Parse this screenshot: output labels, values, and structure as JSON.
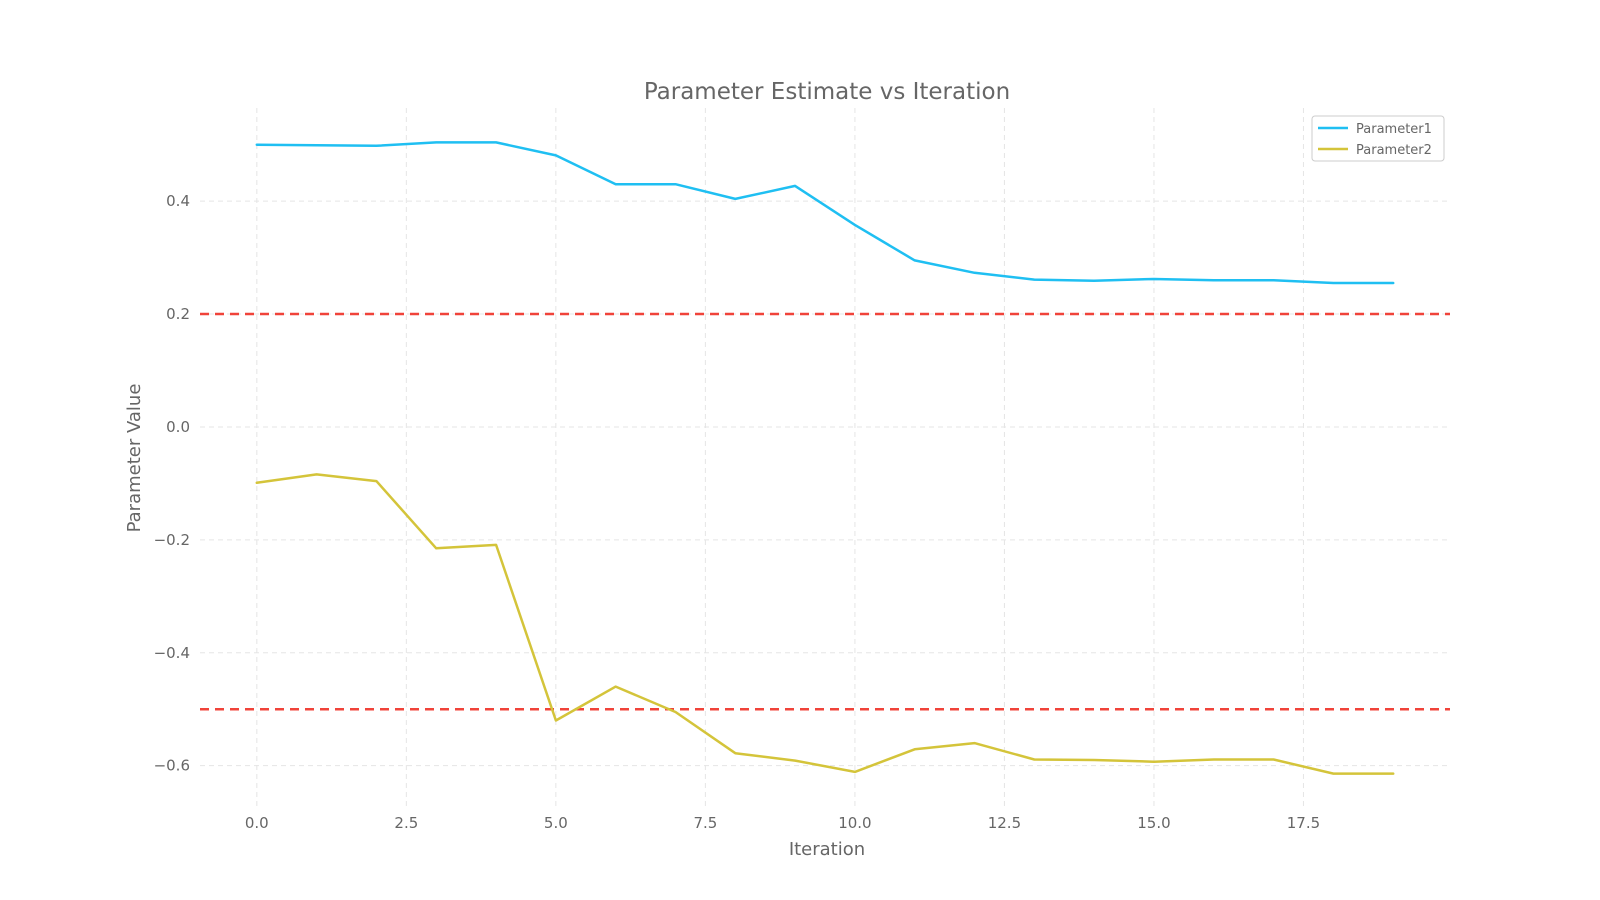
{
  "chart_data": {
    "type": "line",
    "title": "Parameter Estimate vs Iteration",
    "xlabel": "Iteration",
    "ylabel": "Parameter Value",
    "xlim": [
      -0.95,
      19.95
    ],
    "ylim": [
      -0.675,
      0.565
    ],
    "x_ticks": [
      0.0,
      2.5,
      5.0,
      7.5,
      10.0,
      12.5,
      15.0,
      17.5
    ],
    "x_tick_labels": [
      "0.0",
      "2.5",
      "5.0",
      "7.5",
      "10.0",
      "12.5",
      "15.0",
      "17.5"
    ],
    "y_ticks": [
      0.4,
      0.2,
      0.0,
      -0.2,
      -0.4,
      -0.6
    ],
    "y_tick_labels": [
      "0.4",
      "0.2",
      "0.0",
      "−0.2",
      "−0.4",
      "−0.6"
    ],
    "grid": true,
    "legend_position": "top-right",
    "x": [
      0,
      1,
      2,
      3,
      4,
      5,
      6,
      7,
      8,
      9,
      10,
      11,
      12,
      13,
      14,
      15,
      16,
      17,
      18,
      19
    ],
    "series": [
      {
        "name": "Parameter1",
        "color": "#1fbff2",
        "values": [
          0.5,
          0.499,
          0.498,
          0.504,
          0.504,
          0.481,
          0.43,
          0.43,
          0.404,
          0.427,
          0.358,
          0.295,
          0.273,
          0.261,
          0.259,
          0.262,
          0.26,
          0.26,
          0.255,
          0.255
        ]
      },
      {
        "name": "Parameter2",
        "color": "#d4c43a",
        "values": [
          -0.099,
          -0.084,
          -0.096,
          -0.215,
          -0.209,
          -0.52,
          -0.46,
          -0.505,
          -0.578,
          -0.591,
          -0.611,
          -0.571,
          -0.56,
          -0.589,
          -0.59,
          -0.593,
          -0.589,
          -0.589,
          -0.614,
          -0.614
        ]
      }
    ],
    "reference_lines": [
      {
        "y": 0.2,
        "color": "#f0433a"
      },
      {
        "y": -0.5,
        "color": "#f0433a"
      }
    ]
  }
}
